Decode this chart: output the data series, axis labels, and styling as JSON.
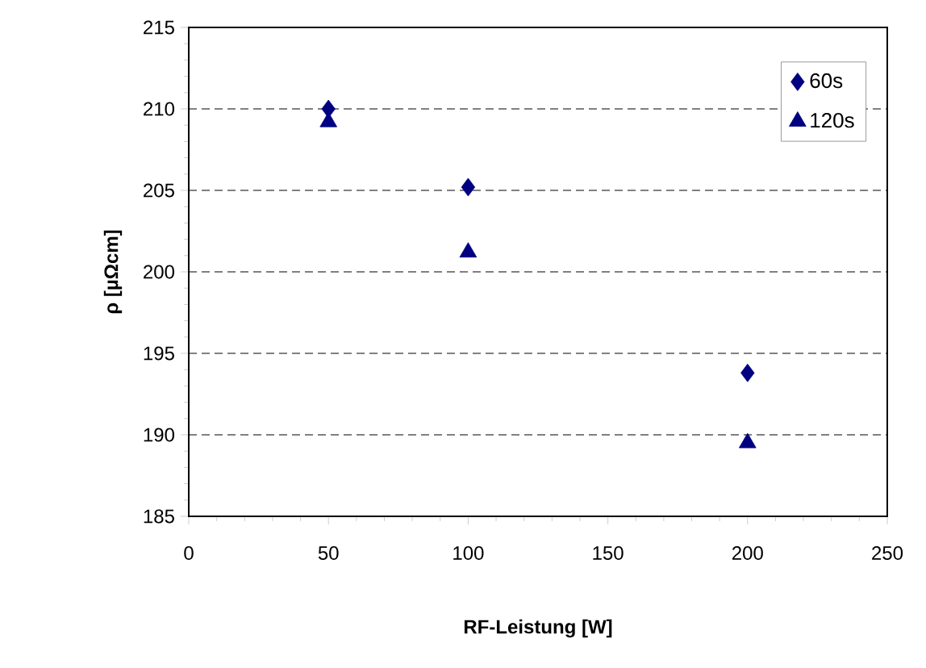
{
  "chart_data": {
    "type": "scatter",
    "xlabel": "RF-Leistung [W]",
    "ylabel": "ρ [µΩcm]",
    "x": [
      50,
      100,
      200
    ],
    "series": [
      {
        "name": "60s",
        "color": "#000080",
        "marker": "diamond",
        "values": [
          210.0,
          205.2,
          193.8
        ]
      },
      {
        "name": "120s",
        "color": "#000080",
        "marker": "triangle",
        "values": [
          209.2,
          201.2,
          189.5
        ]
      }
    ],
    "xlim": [
      0,
      250
    ],
    "xticks": [
      0,
      50,
      100,
      150,
      200,
      250
    ],
    "ylim": [
      185,
      215
    ],
    "yticks": [
      185,
      190,
      195,
      200,
      205,
      210,
      215
    ],
    "grid": "y",
    "legend": "top right"
  }
}
